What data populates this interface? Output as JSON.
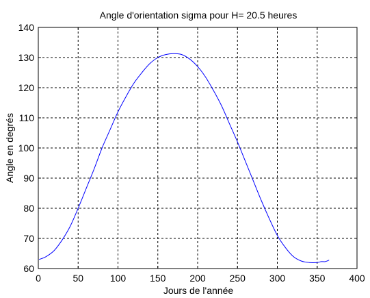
{
  "chart_data": {
    "type": "line",
    "title": "Angle d'orientation sigma pour H= 20.5 heures",
    "xlabel": "Jours de l'année",
    "ylabel": "Angle en degrés",
    "xlim": [
      0,
      400
    ],
    "ylim": [
      60,
      140
    ],
    "xticks": [
      0,
      50,
      100,
      150,
      200,
      250,
      300,
      350,
      400
    ],
    "yticks": [
      60,
      70,
      80,
      90,
      100,
      110,
      120,
      130,
      140
    ],
    "grid": true,
    "line_color": "#0000ff",
    "series": [
      {
        "x": [
          1,
          10,
          20,
          30,
          40,
          50,
          60,
          70,
          80,
          90,
          100,
          110,
          120,
          130,
          140,
          150,
          160,
          170,
          180,
          190,
          200,
          210,
          220,
          230,
          240,
          250,
          260,
          270,
          280,
          290,
          300,
          310,
          320,
          330,
          340,
          350,
          355,
          360,
          365
        ],
        "y": [
          63,
          64,
          66,
          69.5,
          74,
          80,
          86.5,
          93,
          100,
          106,
          112,
          117,
          121.5,
          125,
          128,
          130,
          131,
          131.3,
          131,
          129.5,
          127,
          123.5,
          119,
          114,
          108,
          102,
          95.5,
          89,
          82.5,
          76.5,
          71,
          67,
          64,
          62.5,
          62,
          62,
          62.3,
          62.3,
          62.8
        ]
      }
    ]
  }
}
